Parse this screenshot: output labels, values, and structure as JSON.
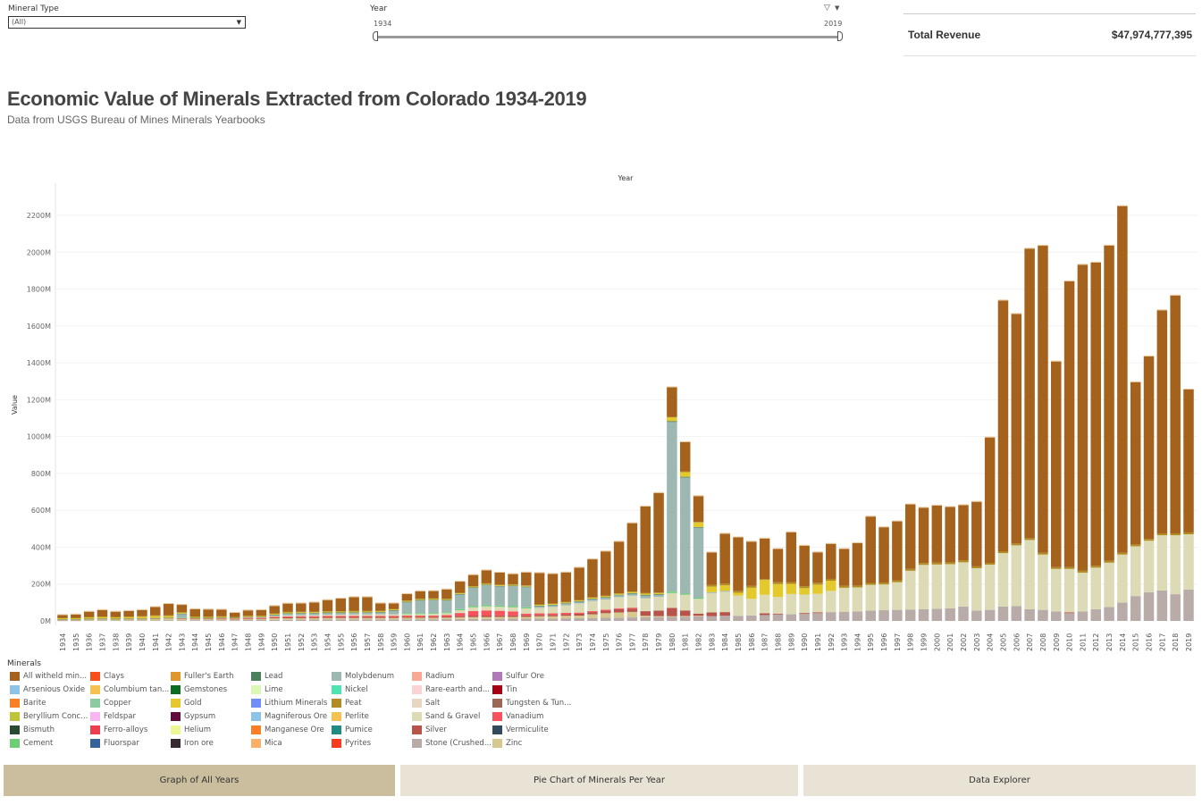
{
  "filters": {
    "mineral_type": {
      "label": "Mineral Type",
      "value": "(All)"
    },
    "year": {
      "label": "Year",
      "min": "1934",
      "max": "2019"
    }
  },
  "kpi": {
    "label": "Total Revenue",
    "value": "$47,974,777,395"
  },
  "header": {
    "title": "Economic Value of Minerals Extracted from Colorado 1934-2019",
    "subtitle": "Data from USGS Bureau of Mines Minerals Yearbooks"
  },
  "legend": {
    "title": "Minerals",
    "items": [
      {
        "label": "All witheld min...",
        "color": "#a5621c"
      },
      {
        "label": "Arsenious Oxide",
        "color": "#8cc3e6"
      },
      {
        "label": "Barite",
        "color": "#fb7e26"
      },
      {
        "label": "Beryllium Conc...",
        "color": "#c0c43a"
      },
      {
        "label": "Bismuth",
        "color": "#2a4a34"
      },
      {
        "label": "Cement",
        "color": "#6ccf73"
      },
      {
        "label": "Clays",
        "color": "#f94f1c"
      },
      {
        "label": "Columbium tan...",
        "color": "#f5c150"
      },
      {
        "label": "Copper",
        "color": "#8ccaa0"
      },
      {
        "label": "Feldspar",
        "color": "#f9b5f2"
      },
      {
        "label": "Ferro-alloys",
        "color": "#ed3e4d"
      },
      {
        "label": "Fluorspar",
        "color": "#35649c"
      },
      {
        "label": "Fuller's Earth",
        "color": "#e0962b"
      },
      {
        "label": "Gemstones",
        "color": "#0c6c1f"
      },
      {
        "label": "Gold",
        "color": "#e3c92b"
      },
      {
        "label": "Gypsum",
        "color": "#620a3c"
      },
      {
        "label": "Helium",
        "color": "#edf795"
      },
      {
        "label": "Iron ore",
        "color": "#352a31"
      },
      {
        "label": "Lead",
        "color": "#4a805c"
      },
      {
        "label": "Lime",
        "color": "#dcf8b5"
      },
      {
        "label": "Lithium Minerals",
        "color": "#6f8ef8"
      },
      {
        "label": "Magniferous Ore",
        "color": "#8cc3e6"
      },
      {
        "label": "Manganese Ore",
        "color": "#fb7e26"
      },
      {
        "label": "Mica",
        "color": "#fbb16a"
      },
      {
        "label": "Molybdenum",
        "color": "#9db8b3"
      },
      {
        "label": "Nickel",
        "color": "#4ee4b0"
      },
      {
        "label": "Peat",
        "color": "#b28c22"
      },
      {
        "label": "Perlite",
        "color": "#f5c150"
      },
      {
        "label": "Pumice",
        "color": "#1e8c83"
      },
      {
        "label": "Pyrites",
        "color": "#f83a1f"
      },
      {
        "label": "Radium",
        "color": "#fba893"
      },
      {
        "label": "Rare-earth and...",
        "color": "#fcd3d5"
      },
      {
        "label": "Salt",
        "color": "#e7d6c4"
      },
      {
        "label": "Sand & Gravel",
        "color": "#dcdbb5"
      },
      {
        "label": "Silver",
        "color": "#b8534a"
      },
      {
        "label": "Stone (Crushed...",
        "color": "#b9aba8"
      },
      {
        "label": "Sulfur Ore",
        "color": "#b07ab9"
      },
      {
        "label": "Tin",
        "color": "#a60012"
      },
      {
        "label": "Tungsten & Tun...",
        "color": "#9a6855"
      },
      {
        "label": "Vanadium",
        "color": "#f9525a"
      },
      {
        "label": "Vermiculite",
        "color": "#33495e"
      },
      {
        "label": "Zinc",
        "color": "#d6c88f"
      }
    ]
  },
  "tabs": [
    {
      "label": "Graph of All Years",
      "active": true
    },
    {
      "label": "Pie Chart of Minerals Per Year",
      "active": false
    },
    {
      "label": "Data Explorer",
      "active": false
    }
  ],
  "chart_data": {
    "type": "bar",
    "stacked": true,
    "title": "Year",
    "xlabel": "Year",
    "ylabel": "Value",
    "ylim": [
      0,
      2300
    ],
    "y_unit": "M",
    "y_ticks": [
      "0M",
      "200M",
      "400M",
      "600M",
      "800M",
      "1000M",
      "1200M",
      "1400M",
      "1600M",
      "1800M",
      "2000M",
      "2200M"
    ],
    "grid": true,
    "categories": [
      "1934",
      "1935",
      "1936",
      "1937",
      "1938",
      "1939",
      "1940",
      "1941",
      "1942",
      "1943",
      "1944",
      "1945",
      "1946",
      "1947",
      "1948",
      "1949",
      "1950",
      "1951",
      "1952",
      "1953",
      "1954",
      "1955",
      "1956",
      "1957",
      "1958",
      "1959",
      "1960",
      "1961",
      "1962",
      "1963",
      "1964",
      "1965",
      "1966",
      "1967",
      "1968",
      "1969",
      "1970",
      "1971",
      "1972",
      "1973",
      "1974",
      "1975",
      "1976",
      "1977",
      "1978",
      "1979",
      "1980",
      "1981",
      "1982",
      "1983",
      "1984",
      "1985",
      "1986",
      "1987",
      "1988",
      "1989",
      "1990",
      "1991",
      "1992",
      "1993",
      "1994",
      "1995",
      "1996",
      "1997",
      "1998",
      "1999",
      "2000",
      "2001",
      "2002",
      "2003",
      "2004",
      "2005",
      "2006",
      "2007",
      "2008",
      "2009",
      "2010",
      "2011",
      "2012",
      "2013",
      "2014",
      "2015",
      "2016",
      "2017",
      "2018",
      "2019"
    ],
    "series": [
      {
        "name": "Stone (Crushed...",
        "color": "#b9aba8",
        "values": [
          2,
          2,
          3,
          3,
          3,
          3,
          3,
          4,
          4,
          4,
          4,
          4,
          4,
          4,
          5,
          5,
          6,
          6,
          7,
          7,
          8,
          8,
          8,
          8,
          8,
          8,
          9,
          9,
          9,
          10,
          10,
          11,
          11,
          12,
          12,
          12,
          13,
          13,
          14,
          15,
          16,
          17,
          18,
          19,
          20,
          21,
          22,
          23,
          25,
          26,
          28,
          28,
          30,
          32,
          35,
          36,
          38,
          42,
          48,
          50,
          52,
          56,
          58,
          60,
          62,
          64,
          66,
          68,
          78,
          56,
          60,
          78,
          80,
          64,
          60,
          52,
          42,
          52,
          64,
          76,
          100,
          135,
          155,
          165,
          145,
          170
        ]
      },
      {
        "name": "Zinc",
        "color": "#d6c88f",
        "values": [
          3,
          3,
          4,
          5,
          4,
          5,
          5,
          6,
          8,
          6,
          5,
          5,
          5,
          4,
          6,
          6,
          8,
          8,
          8,
          8,
          8,
          8,
          8,
          8,
          8,
          8,
          8,
          8,
          8,
          8,
          10,
          10,
          10,
          10,
          10,
          10,
          12,
          12,
          14,
          14,
          20,
          25,
          28,
          30,
          8,
          5,
          4,
          4,
          3,
          0,
          0,
          0,
          0,
          0,
          0,
          0,
          0,
          0,
          0,
          0,
          0,
          0,
          0,
          0,
          0,
          0,
          0,
          0,
          0,
          0,
          0,
          0,
          0,
          0,
          0,
          0,
          0,
          0,
          0,
          0,
          0,
          0,
          0,
          0,
          0,
          0
        ]
      },
      {
        "name": "Silver",
        "color": "#b8534a",
        "values": [
          2,
          2,
          2,
          3,
          2,
          3,
          3,
          3,
          3,
          3,
          3,
          3,
          3,
          3,
          4,
          4,
          5,
          6,
          6,
          6,
          6,
          6,
          6,
          6,
          6,
          6,
          6,
          6,
          6,
          6,
          8,
          8,
          8,
          8,
          8,
          8,
          8,
          8,
          8,
          10,
          12,
          14,
          18,
          18,
          25,
          30,
          45,
          30,
          12,
          20,
          20,
          0,
          0,
          10,
          5,
          0,
          5,
          5,
          0,
          0,
          0,
          0,
          0,
          0,
          0,
          0,
          0,
          0,
          0,
          0,
          0,
          0,
          0,
          0,
          0,
          0,
          5,
          0,
          0,
          0,
          0,
          0,
          0,
          0,
          0,
          0
        ]
      },
      {
        "name": "Vanadium",
        "color": "#f9525a",
        "values": [
          0,
          0,
          0,
          0,
          0,
          0,
          0,
          0,
          0,
          2,
          2,
          2,
          2,
          2,
          3,
          3,
          4,
          5,
          5,
          5,
          6,
          6,
          6,
          6,
          6,
          6,
          6,
          6,
          6,
          8,
          15,
          25,
          28,
          25,
          22,
          10,
          8,
          8,
          8,
          6,
          5,
          5,
          5,
          5,
          0,
          0,
          0,
          0,
          0,
          0,
          0,
          0,
          0,
          0,
          0,
          0,
          0,
          0,
          0,
          0,
          0,
          0,
          0,
          0,
          0,
          0,
          0,
          0,
          0,
          0,
          0,
          0,
          0,
          0,
          0,
          0,
          0,
          0,
          0,
          0,
          0,
          0,
          0,
          0,
          0,
          0
        ]
      },
      {
        "name": "Sand & Gravel",
        "color": "#dcdbb5",
        "values": [
          1,
          1,
          1,
          1,
          1,
          1,
          1,
          1,
          1,
          1,
          1,
          1,
          2,
          2,
          3,
          3,
          4,
          5,
          5,
          5,
          6,
          6,
          7,
          7,
          8,
          8,
          8,
          8,
          9,
          10,
          15,
          20,
          22,
          22,
          22,
          28,
          30,
          35,
          40,
          50,
          55,
          55,
          60,
          65,
          70,
          75,
          80,
          85,
          80,
          105,
          110,
          110,
          90,
          100,
          90,
          110,
          100,
          100,
          115,
          130,
          130,
          140,
          140,
          150,
          210,
          240,
          240,
          240,
          240,
          230,
          245,
          290,
          330,
          375,
          300,
          230,
          235,
          210,
          225,
          240,
          260,
          270,
          280,
          300,
          320,
          300
        ]
      },
      {
        "name": "Cement",
        "color": "#6ccf73",
        "values": [
          0,
          0,
          0,
          0,
          0,
          0,
          0,
          0,
          0,
          2,
          0,
          0,
          0,
          0,
          0,
          0,
          0,
          0,
          0,
          0,
          0,
          0,
          0,
          0,
          0,
          0,
          5,
          5,
          5,
          5,
          6,
          6,
          6,
          6,
          6,
          6,
          0,
          0,
          0,
          0,
          0,
          0,
          0,
          0,
          0,
          0,
          8,
          6,
          6,
          0,
          0,
          0,
          0,
          0,
          0,
          0,
          0,
          0,
          0,
          0,
          0,
          0,
          0,
          0,
          0,
          0,
          0,
          0,
          0,
          0,
          0,
          0,
          0,
          0,
          0,
          0,
          0,
          0,
          0,
          0,
          0,
          0,
          0,
          0,
          0,
          0
        ]
      },
      {
        "name": "Molybdenum",
        "color": "#9db8b3",
        "values": [
          0,
          0,
          0,
          0,
          0,
          0,
          0,
          0,
          0,
          20,
          0,
          0,
          0,
          0,
          0,
          0,
          5,
          10,
          10,
          10,
          10,
          10,
          10,
          10,
          10,
          20,
          60,
          70,
          70,
          65,
          80,
          100,
          110,
          105,
          110,
          110,
          10,
          10,
          10,
          10,
          10,
          10,
          10,
          10,
          15,
          10,
          920,
          630,
          380,
          5,
          5,
          0,
          0,
          0,
          0,
          0,
          0,
          0,
          0,
          0,
          0,
          0,
          0,
          0,
          0,
          0,
          0,
          0,
          0,
          0,
          0,
          0,
          0,
          0,
          0,
          0,
          0,
          0,
          0,
          0,
          0,
          0,
          0,
          0,
          0,
          0
        ]
      },
      {
        "name": "Lead",
        "color": "#4a805c",
        "values": [
          1,
          1,
          2,
          2,
          2,
          2,
          2,
          2,
          2,
          2,
          2,
          2,
          2,
          2,
          2,
          2,
          2,
          2,
          2,
          2,
          2,
          2,
          2,
          2,
          2,
          2,
          2,
          2,
          2,
          2,
          2,
          2,
          2,
          2,
          2,
          2,
          2,
          2,
          2,
          2,
          3,
          3,
          3,
          4,
          4,
          4,
          5,
          4,
          3,
          0,
          0,
          0,
          0,
          0,
          0,
          0,
          0,
          0,
          0,
          0,
          0,
          0,
          0,
          0,
          0,
          0,
          0,
          0,
          0,
          0,
          0,
          0,
          0,
          0,
          0,
          0,
          0,
          0,
          0,
          0,
          0,
          0,
          0,
          0,
          0,
          0
        ]
      },
      {
        "name": "Gold",
        "color": "#e3c92b",
        "values": [
          6,
          6,
          8,
          8,
          8,
          8,
          10,
          12,
          10,
          5,
          5,
          5,
          5,
          3,
          4,
          4,
          4,
          4,
          4,
          4,
          4,
          4,
          4,
          4,
          4,
          4,
          4,
          4,
          4,
          4,
          4,
          4,
          4,
          4,
          4,
          4,
          4,
          4,
          4,
          4,
          5,
          5,
          5,
          6,
          6,
          6,
          20,
          25,
          25,
          30,
          30,
          15,
          60,
          80,
          70,
          55,
          35,
          50,
          55,
          0,
          0,
          0,
          0,
          0,
          0,
          0,
          0,
          0,
          0,
          0,
          0,
          0,
          0,
          0,
          0,
          0,
          0,
          0,
          0,
          0,
          0,
          0,
          0,
          0,
          0,
          0
        ]
      },
      {
        "name": "Peat",
        "color": "#b28c22",
        "values": [
          2,
          2,
          2,
          2,
          2,
          2,
          2,
          2,
          2,
          2,
          2,
          2,
          2,
          2,
          2,
          2,
          3,
          3,
          3,
          3,
          3,
          3,
          3,
          3,
          3,
          3,
          3,
          3,
          3,
          3,
          3,
          3,
          3,
          3,
          3,
          3,
          3,
          3,
          3,
          3,
          3,
          3,
          3,
          3,
          3,
          3,
          3,
          3,
          3,
          10,
          10,
          10,
          10,
          5,
          10,
          10,
          10,
          10,
          10,
          10,
          10,
          10,
          10,
          10,
          10,
          10,
          10,
          10,
          10,
          10,
          10,
          10,
          10,
          10,
          10,
          10,
          10,
          10,
          10,
          10,
          10,
          10,
          10,
          10,
          10,
          10
        ]
      },
      {
        "name": "All witheld min...",
        "color": "#a5621c",
        "values": [
          15,
          18,
          28,
          35,
          28,
          30,
          33,
          45,
          62,
          40,
          40,
          38,
          36,
          22,
          28,
          30,
          40,
          45,
          45,
          50,
          60,
          68,
          75,
          75,
          40,
          30,
          35,
          40,
          40,
          50,
          60,
          60,
          70,
          65,
          55,
          70,
          170,
          160,
          160,
          175,
          205,
          240,
          280,
          370,
          470,
          540,
          160,
          160,
          140,
          175,
          270,
          290,
          240,
          220,
          180,
          270,
          220,
          165,
          190,
          200,
          230,
          360,
          300,
          320,
          350,
          300,
          310,
          300,
          300,
          350,
          680,
          1360,
          1245,
          1570,
          1665,
          1115,
          1550,
          1660,
          1645,
          1710,
          1880,
          880,
          990,
          1210,
          1290,
          775
        ]
      }
    ]
  }
}
